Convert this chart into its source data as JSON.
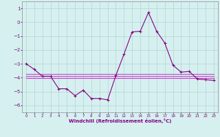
{
  "x": [
    0,
    1,
    2,
    3,
    4,
    5,
    6,
    7,
    8,
    9,
    10,
    11,
    12,
    13,
    14,
    15,
    16,
    17,
    18,
    19,
    20,
    21,
    22,
    23
  ],
  "y_main": [
    -3.0,
    -3.4,
    -3.9,
    -3.9,
    -4.8,
    -4.8,
    -5.3,
    -4.9,
    -5.5,
    -5.5,
    -5.6,
    -3.85,
    -2.3,
    -0.7,
    -0.65,
    0.7,
    -0.65,
    -1.5,
    -3.1,
    -3.6,
    -3.55,
    -4.1,
    -4.15,
    -4.2
  ],
  "y_flat1": [
    -3.75,
    -3.75,
    -3.75,
    -3.75,
    -3.75,
    -3.75,
    -3.75,
    -3.75,
    -3.75,
    -3.75,
    -3.75,
    -3.75,
    -3.75,
    -3.75,
    -3.75,
    -3.75,
    -3.75,
    -3.75,
    -3.75,
    -3.75,
    -3.75,
    -3.75,
    -3.75,
    -3.75
  ],
  "y_flat2": [
    -3.9,
    -3.9,
    -3.9,
    -3.9,
    -3.9,
    -3.9,
    -3.9,
    -3.9,
    -3.9,
    -3.9,
    -3.9,
    -3.9,
    -3.9,
    -3.9,
    -3.9,
    -3.9,
    -3.9,
    -3.9,
    -3.9,
    -3.9,
    -3.9,
    -3.9,
    -3.9,
    -3.9
  ],
  "y_flat3": [
    -4.05,
    -4.05,
    -4.05,
    -4.05,
    -4.05,
    -4.05,
    -4.05,
    -4.05,
    -4.05,
    -4.05,
    -4.05,
    -4.05,
    -4.05,
    -4.05,
    -4.05,
    -4.05,
    -4.05,
    -4.05,
    -4.05,
    -4.05,
    -4.05,
    -4.05,
    -4.05,
    -4.05
  ],
  "line_color": "#800080",
  "flat_color": "#cc44cc",
  "bg_color": "#d6f0f0",
  "grid_color": "#aacccc",
  "xlabel": "Windchill (Refroidissement éolien,°C)",
  "ylim": [
    -6.5,
    1.5
  ],
  "xlim": [
    -0.5,
    23.5
  ],
  "yticks": [
    1,
    0,
    -1,
    -2,
    -3,
    -4,
    -5,
    -6
  ],
  "xticks": [
    0,
    1,
    2,
    3,
    4,
    5,
    6,
    7,
    8,
    9,
    10,
    11,
    12,
    13,
    14,
    15,
    16,
    17,
    18,
    19,
    20,
    21,
    22,
    23
  ]
}
